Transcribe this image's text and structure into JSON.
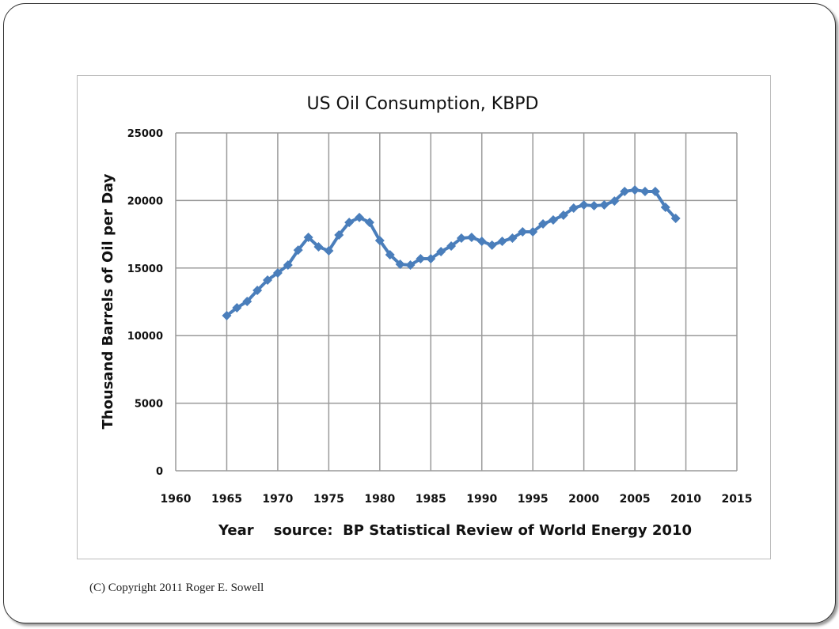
{
  "chart_data": {
    "type": "line",
    "title": "US Oil Consumption, KBPD",
    "xlabel": "Year    source:  BP Statistical Review of World Energy 2010",
    "ylabel": "Thousand Barrels of Oil per Day",
    "xlim": [
      1960,
      2015
    ],
    "ylim": [
      0,
      25000
    ],
    "xticks": [
      1960,
      1965,
      1970,
      1975,
      1980,
      1985,
      1990,
      1995,
      2000,
      2005,
      2010,
      2015
    ],
    "yticks": [
      0,
      5000,
      10000,
      15000,
      20000,
      25000
    ],
    "grid": true,
    "marker": "diamond",
    "color": "#4a7ebb",
    "x": [
      1965,
      1966,
      1967,
      1968,
      1969,
      1970,
      1971,
      1972,
      1973,
      1974,
      1975,
      1976,
      1977,
      1978,
      1979,
      1980,
      1981,
      1982,
      1983,
      1984,
      1985,
      1986,
      1987,
      1988,
      1989,
      1990,
      1991,
      1992,
      1993,
      1994,
      1995,
      1996,
      1997,
      1998,
      1999,
      2000,
      2001,
      2002,
      2003,
      2004,
      2005,
      2006,
      2007,
      2008,
      2009
    ],
    "y": [
      11480,
      12060,
      12530,
      13350,
      14110,
      14640,
      15220,
      16330,
      17270,
      16570,
      16280,
      17450,
      18380,
      18740,
      18380,
      17040,
      15980,
      15280,
      15220,
      15690,
      15690,
      16220,
      16630,
      17210,
      17270,
      16980,
      16690,
      16980,
      17210,
      17680,
      17680,
      18270,
      18560,
      18910,
      19440,
      19670,
      19610,
      19670,
      19960,
      20670,
      20780,
      20670,
      20670,
      19500,
      18680
    ]
  },
  "footer": {
    "copyright": "(C) Copyright 2011 Roger E. Sowell"
  }
}
